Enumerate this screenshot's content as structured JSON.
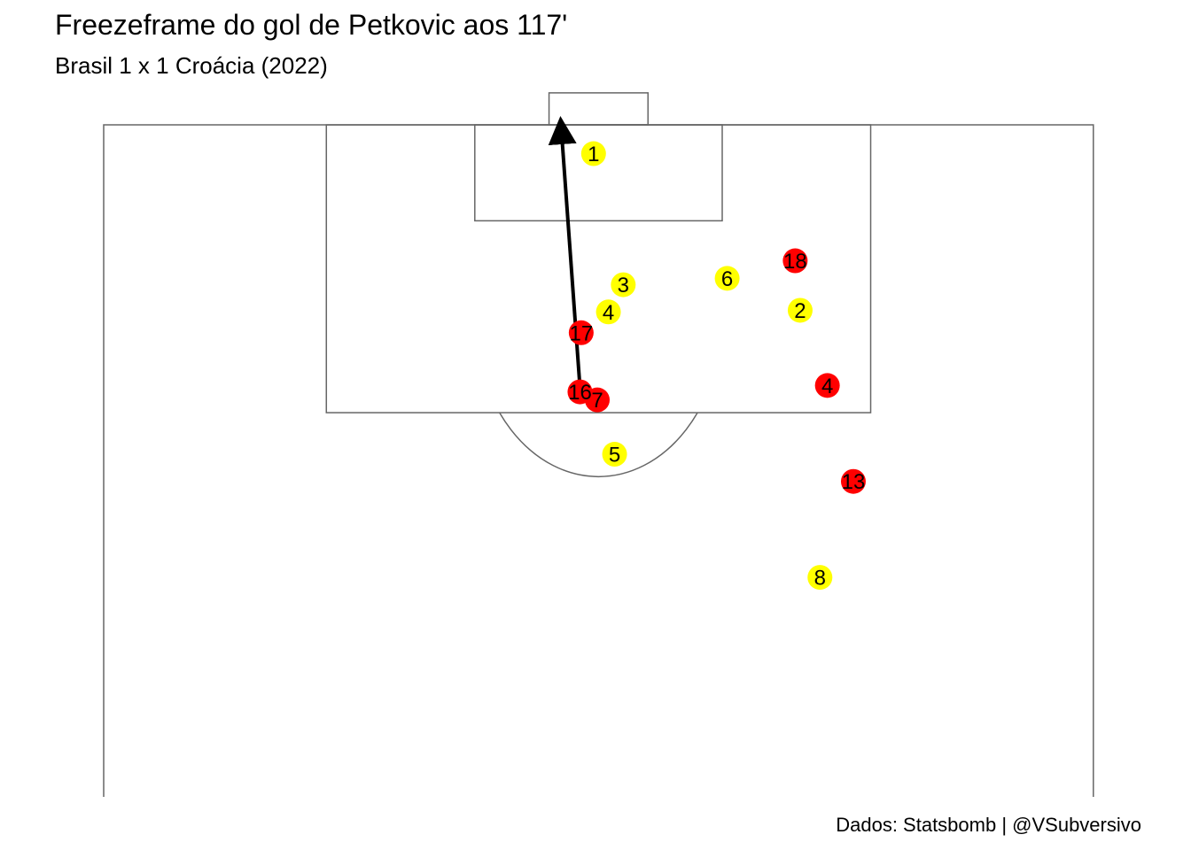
{
  "title": "Freezeframe do gol de Petkovic aos 117'",
  "subtitle": "Brasil 1 x 1 Croácia (2022)",
  "caption": "Dados: Statsbomb | @VSubversivo",
  "chart_data": {
    "type": "scatter",
    "pitch": {
      "length": 120,
      "width": 80,
      "visible_x_range": [
        78,
        120
      ],
      "orientation": "attacking-up",
      "line_color": "#666666"
    },
    "colors": {
      "yellow_team": "#FFFF00",
      "red_team": "#FF0000"
    },
    "players": [
      {
        "team": "yellow",
        "number": "1",
        "x": 118.2,
        "y": 39.6
      },
      {
        "team": "yellow",
        "number": "3",
        "x": 110.0,
        "y": 42.0
      },
      {
        "team": "yellow",
        "number": "4",
        "x": 108.3,
        "y": 40.8
      },
      {
        "team": "yellow",
        "number": "6",
        "x": 110.4,
        "y": 50.4
      },
      {
        "team": "yellow",
        "number": "2",
        "x": 108.4,
        "y": 56.3
      },
      {
        "team": "yellow",
        "number": "5",
        "x": 99.4,
        "y": 41.3
      },
      {
        "team": "yellow",
        "number": "8",
        "x": 91.7,
        "y": 57.9
      },
      {
        "team": "red",
        "number": "18",
        "x": 111.5,
        "y": 55.9
      },
      {
        "team": "red",
        "number": "17",
        "x": 107.0,
        "y": 38.6
      },
      {
        "team": "red",
        "number": "16",
        "x": 103.3,
        "y": 38.5
      },
      {
        "team": "red",
        "number": "7",
        "x": 102.8,
        "y": 39.9
      },
      {
        "team": "red",
        "number": "4",
        "x": 103.7,
        "y": 58.5
      },
      {
        "team": "red",
        "number": "13",
        "x": 97.7,
        "y": 60.6
      }
    ],
    "shot": {
      "start": {
        "x": 103.6,
        "y": 38.5
      },
      "end": {
        "x": 120,
        "y": 37.0
      },
      "color": "#000000"
    }
  }
}
